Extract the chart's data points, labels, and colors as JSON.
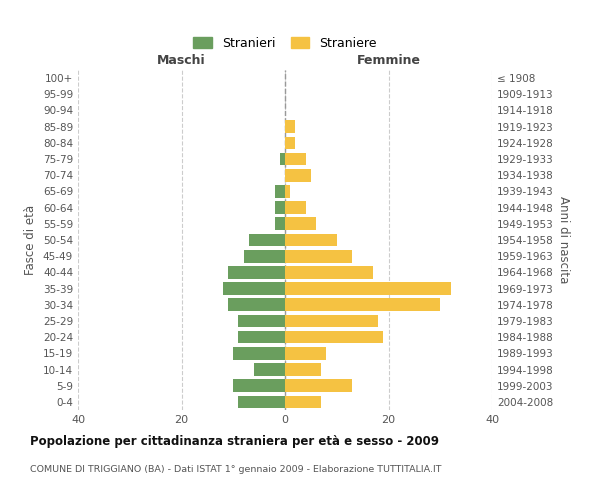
{
  "age_groups_bottom_to_top": [
    "0-4",
    "5-9",
    "10-14",
    "15-19",
    "20-24",
    "25-29",
    "30-34",
    "35-39",
    "40-44",
    "45-49",
    "50-54",
    "55-59",
    "60-64",
    "65-69",
    "70-74",
    "75-79",
    "80-84",
    "85-89",
    "90-94",
    "95-99",
    "100+"
  ],
  "birth_years_bottom_to_top": [
    "2004-2008",
    "1999-2003",
    "1994-1998",
    "1989-1993",
    "1984-1988",
    "1979-1983",
    "1974-1978",
    "1969-1973",
    "1964-1968",
    "1959-1963",
    "1954-1958",
    "1949-1953",
    "1944-1948",
    "1939-1943",
    "1934-1938",
    "1929-1933",
    "1924-1928",
    "1919-1923",
    "1914-1918",
    "1909-1913",
    "≤ 1908"
  ],
  "maschi_bottom_to_top": [
    9,
    10,
    6,
    10,
    9,
    9,
    11,
    12,
    11,
    8,
    7,
    2,
    2,
    2,
    0,
    1,
    0,
    0,
    0,
    0,
    0
  ],
  "femmine_bottom_to_top": [
    7,
    13,
    7,
    8,
    19,
    18,
    30,
    32,
    17,
    13,
    10,
    6,
    4,
    1,
    5,
    4,
    2,
    2,
    0,
    0,
    0
  ],
  "maschi_color": "#6a9e5e",
  "femmine_color": "#f5c242",
  "title": "Popolazione per cittadinanza straniera per età e sesso - 2009",
  "subtitle": "COMUNE DI TRIGGIANO (BA) - Dati ISTAT 1° gennaio 2009 - Elaborazione TUTTITALIA.IT",
  "xlabel_left": "Maschi",
  "xlabel_right": "Femmine",
  "ylabel_left": "Fasce di età",
  "ylabel_right": "Anni di nascita",
  "legend_maschi": "Stranieri",
  "legend_femmine": "Straniere",
  "xlim": 40,
  "background_color": "#ffffff",
  "grid_color": "#cccccc"
}
